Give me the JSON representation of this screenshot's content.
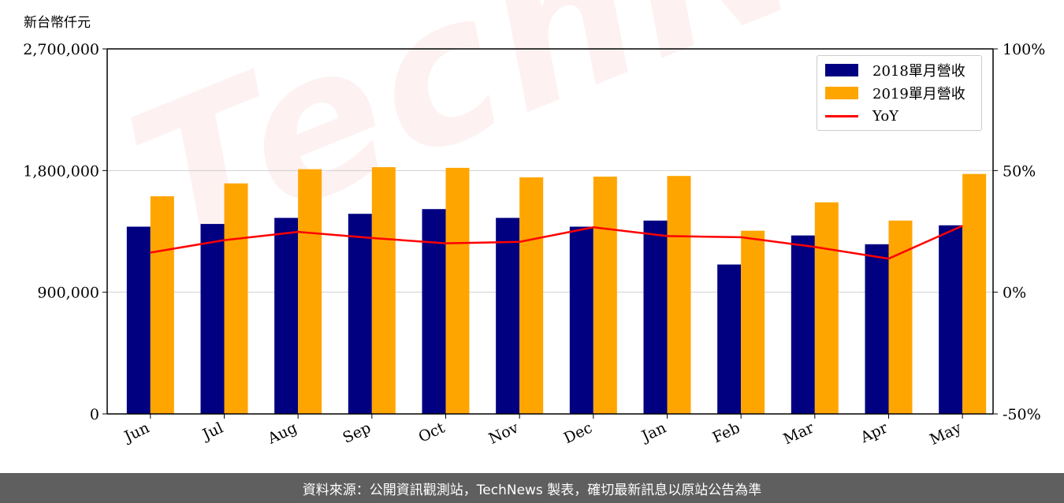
{
  "unit_label": "新台幣仟元",
  "watermark": "TechNews",
  "footer_text": "資料來源：公開資訊觀測站，TechNews 製表，確切最新訊息以原站公告為準",
  "colors": {
    "series_2018": "#000080",
    "series_2019": "#FFA500",
    "yoy": "#FF0000",
    "grid": "#d0d0d0",
    "footer_bg": "#5f5f5f"
  },
  "legend": {
    "item_2018": "2018單月營收",
    "item_2019": "2019單月營收",
    "item_yoy": "YoY"
  },
  "chart_data": {
    "type": "bar",
    "categories": [
      "Jun",
      "Jul",
      "Aug",
      "Sep",
      "Oct",
      "Nov",
      "Dec",
      "Jan",
      "Feb",
      "Mar",
      "Apr",
      "May"
    ],
    "series": [
      {
        "name": "2018單月營收",
        "values": [
          1385000,
          1405000,
          1450000,
          1480000,
          1515000,
          1450000,
          1385000,
          1430000,
          1105000,
          1320000,
          1255000,
          1395000
        ]
      },
      {
        "name": "2019單月營收",
        "values": [
          1610000,
          1705000,
          1810000,
          1825000,
          1820000,
          1750000,
          1755000,
          1760000,
          1355000,
          1565000,
          1430000,
          1775000
        ]
      },
      {
        "name": "YoY",
        "axis": "right",
        "values": [
          16.3,
          21.4,
          24.8,
          22.3,
          20.1,
          20.7,
          26.7,
          23.1,
          22.6,
          18.6,
          13.8,
          27.3
        ]
      }
    ],
    "y_left": {
      "ylim": [
        0,
        2700000
      ],
      "ticks": [
        0,
        900000,
        1800000,
        2700000
      ],
      "tick_labels": [
        "0",
        "900,000",
        "1,800,000",
        "2,700,000"
      ]
    },
    "y_right": {
      "ylim": [
        -50,
        100
      ],
      "ticks": [
        -50,
        0,
        50,
        100
      ],
      "tick_labels": [
        "-50%",
        "0%",
        "50%",
        "100%"
      ]
    },
    "grid": "horizontal",
    "legend_position": "top-right"
  }
}
